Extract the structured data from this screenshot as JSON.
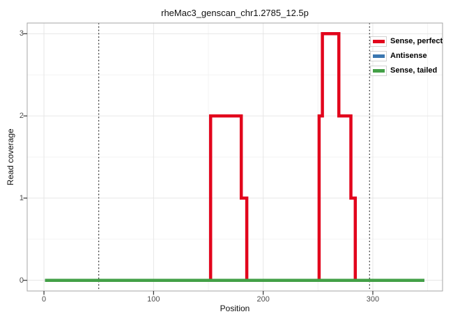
{
  "chart_data": {
    "type": "line",
    "subtype": "step-coverage",
    "title": "rheMac3_genscan_chr1.2785_12.5p",
    "xlabel": "Position",
    "ylabel": "Read coverage",
    "xlim": [
      -15.3,
      363.6
    ],
    "ylim": [
      -0.13,
      3.13
    ],
    "xticks": [
      0,
      100,
      200,
      300
    ],
    "yticks": [
      0,
      1,
      2,
      3
    ],
    "xticks_minor": [
      50,
      150,
      250,
      350
    ],
    "yticks_minor": [
      0.5,
      1.5,
      2.5
    ],
    "grid": "major+minor",
    "legend_position": "top-right-inside",
    "vlines": {
      "positions": [
        50,
        297
      ],
      "style": "dotted",
      "color": "#000000"
    },
    "series": [
      {
        "name": "Sense, perfect",
        "color": "#e2041c",
        "points": [
          [
            1,
            0
          ],
          [
            152,
            0
          ],
          [
            152,
            2
          ],
          [
            180,
            2
          ],
          [
            180,
            1
          ],
          [
            185,
            1
          ],
          [
            185,
            0
          ],
          [
            251,
            0
          ],
          [
            251,
            2
          ],
          [
            254,
            2
          ],
          [
            254,
            3
          ],
          [
            269,
            3
          ],
          [
            269,
            2
          ],
          [
            280,
            2
          ],
          [
            280,
            1
          ],
          [
            284,
            1
          ],
          [
            284,
            0
          ],
          [
            347,
            0
          ]
        ]
      },
      {
        "name": "Antisense",
        "color": "#3b77b0",
        "points": [
          [
            1,
            0
          ],
          [
            347,
            0
          ]
        ]
      },
      {
        "name": "Sense, tailed",
        "color": "#43a047",
        "points": [
          [
            1,
            0
          ],
          [
            347,
            0
          ]
        ]
      }
    ],
    "style_colors": {
      "panel_border": "#a6a6a6",
      "grid_major": "#e6e6e6",
      "grid_minor": "#f3f3f3",
      "tick": "#333333",
      "tick_label": "#4d4d4d"
    }
  }
}
